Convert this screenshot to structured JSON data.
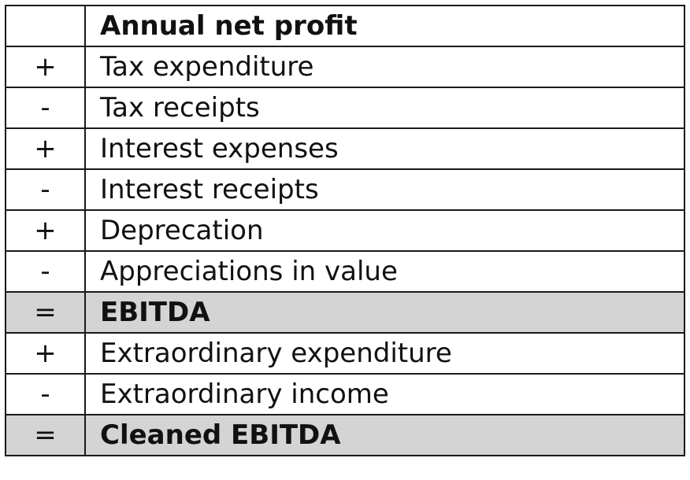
{
  "table": {
    "rows": [
      {
        "op": "",
        "label": "Annual net profit",
        "bold": true,
        "shaded": false
      },
      {
        "op": "+",
        "label": "Tax expenditure",
        "bold": false,
        "shaded": false
      },
      {
        "op": "-",
        "label": "Tax receipts",
        "bold": false,
        "shaded": false
      },
      {
        "op": "+",
        "label": "Interest expenses",
        "bold": false,
        "shaded": false
      },
      {
        "op": "-",
        "label": "Interest receipts",
        "bold": false,
        "shaded": false
      },
      {
        "op": "+",
        "label": "Deprecation",
        "bold": false,
        "shaded": false
      },
      {
        "op": "-",
        "label": "Appreciations in value",
        "bold": false,
        "shaded": false
      },
      {
        "op": "=",
        "label": "EBITDA",
        "bold": true,
        "shaded": true
      },
      {
        "op": "+",
        "label": "Extraordinary expenditure",
        "bold": false,
        "shaded": false
      },
      {
        "op": "-",
        "label": "Extraordinary income",
        "bold": false,
        "shaded": false
      },
      {
        "op": "=",
        "label": "Cleaned EBITDA",
        "bold": true,
        "shaded": true
      }
    ],
    "shade_color": "#d4d4d4",
    "border_color": "#1a1a1a"
  }
}
